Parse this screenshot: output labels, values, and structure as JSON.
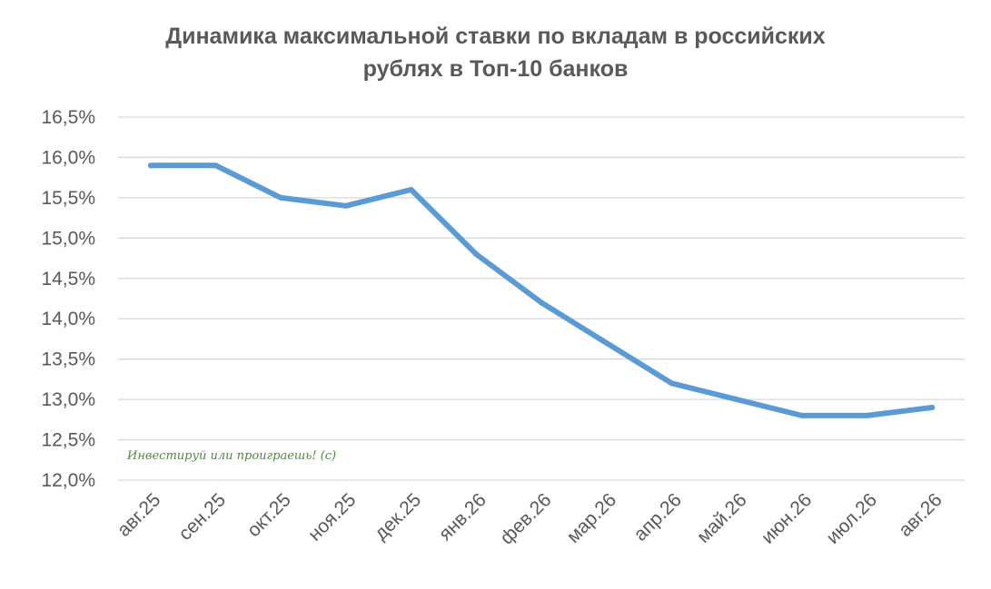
{
  "chart_data": {
    "type": "line",
    "title_line1": "Динамика максимальной ставки по вкладам в российских",
    "title_line2": "рублях в Топ-10 банков",
    "categories": [
      "авг.25",
      "сен.25",
      "окт.25",
      "ноя.25",
      "дек.25",
      "янв.26",
      "фев.26",
      "мар.26",
      "апр.26",
      "май.26",
      "июн.26",
      "июл.26",
      "авг.26"
    ],
    "series": [
      {
        "values": [
          15.9,
          15.9,
          15.5,
          15.4,
          15.6,
          14.8,
          14.2,
          13.7,
          13.2,
          13.0,
          12.8,
          12.8,
          12.9
        ]
      }
    ],
    "y_ticks": [
      "12,0%",
      "12,5%",
      "13,0%",
      "13,5%",
      "14,0%",
      "14,5%",
      "15,0%",
      "15,5%",
      "16,0%",
      "16,5%"
    ],
    "ylim": [
      12.0,
      16.5
    ],
    "grid": true,
    "legend": "none",
    "watermark": "Инвестируй или проиграешь! (с)",
    "colors": {
      "line": "#5b9bd5",
      "grid": "#d9d9d9",
      "text": "#595959",
      "watermark": "#4e8a3e"
    }
  }
}
